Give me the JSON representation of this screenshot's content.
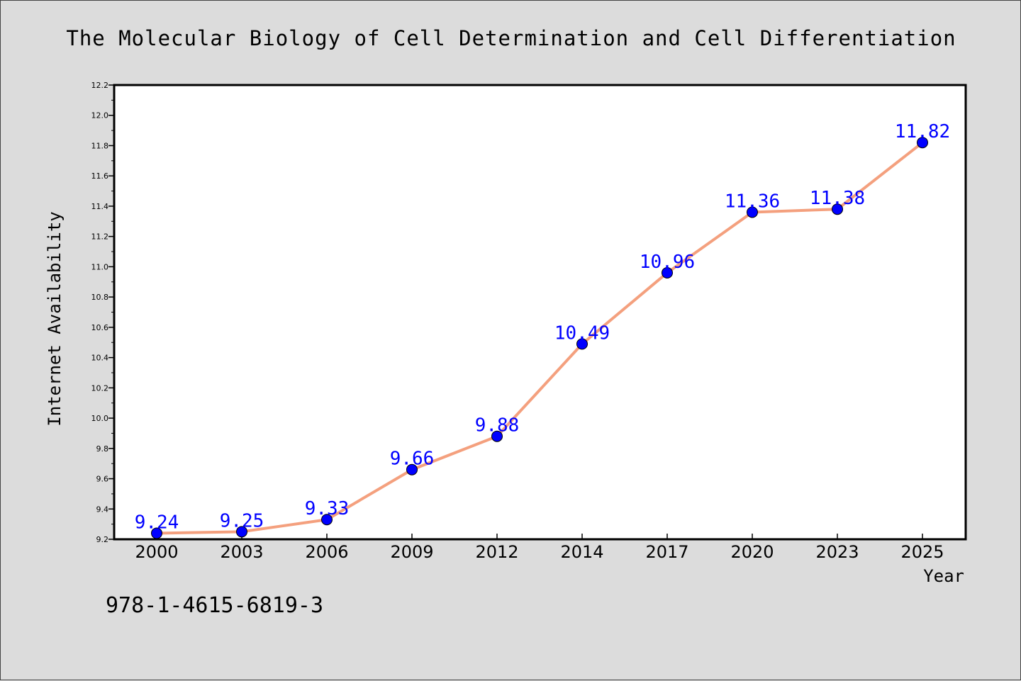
{
  "chart_data": {
    "type": "line",
    "title": "The Molecular Biology of Cell Determination and Cell Differentiation",
    "xlabel": "Year",
    "ylabel": "Internet Availability",
    "categories": [
      "2000",
      "2003",
      "2006",
      "2009",
      "2012",
      "2014",
      "2017",
      "2020",
      "2023",
      "2025"
    ],
    "series": [
      {
        "values": [
          9.24,
          9.25,
          9.33,
          9.66,
          9.88,
          10.49,
          10.96,
          11.36,
          11.38,
          11.82
        ],
        "line_color": "#f4a07e",
        "marker_color": "#0000ff",
        "label_color": "#0000ff"
      }
    ],
    "data_labels": [
      "9.24",
      "9.25",
      "9.33",
      "9.66",
      "9.88",
      "10.49",
      "10.96",
      "11.36",
      "11.38",
      "11.82"
    ],
    "ylim": [
      9.2,
      12.2
    ],
    "yticks": [
      "9.2",
      "9.4",
      "9.6",
      "9.8",
      "10.0",
      "10.2",
      "10.4",
      "10.6",
      "10.8",
      "11.0",
      "11.2",
      "11.4",
      "11.6",
      "11.8",
      "12.0",
      "12.2"
    ],
    "grid": false,
    "legend": "none"
  },
  "annotation": {
    "text": "978-1-4615-6819-3"
  },
  "colors": {
    "background": "#dcdcdc",
    "plot_area": "#ffffff",
    "line": "#f4a07e",
    "marker": "#0000ff",
    "label": "#0000ff"
  }
}
